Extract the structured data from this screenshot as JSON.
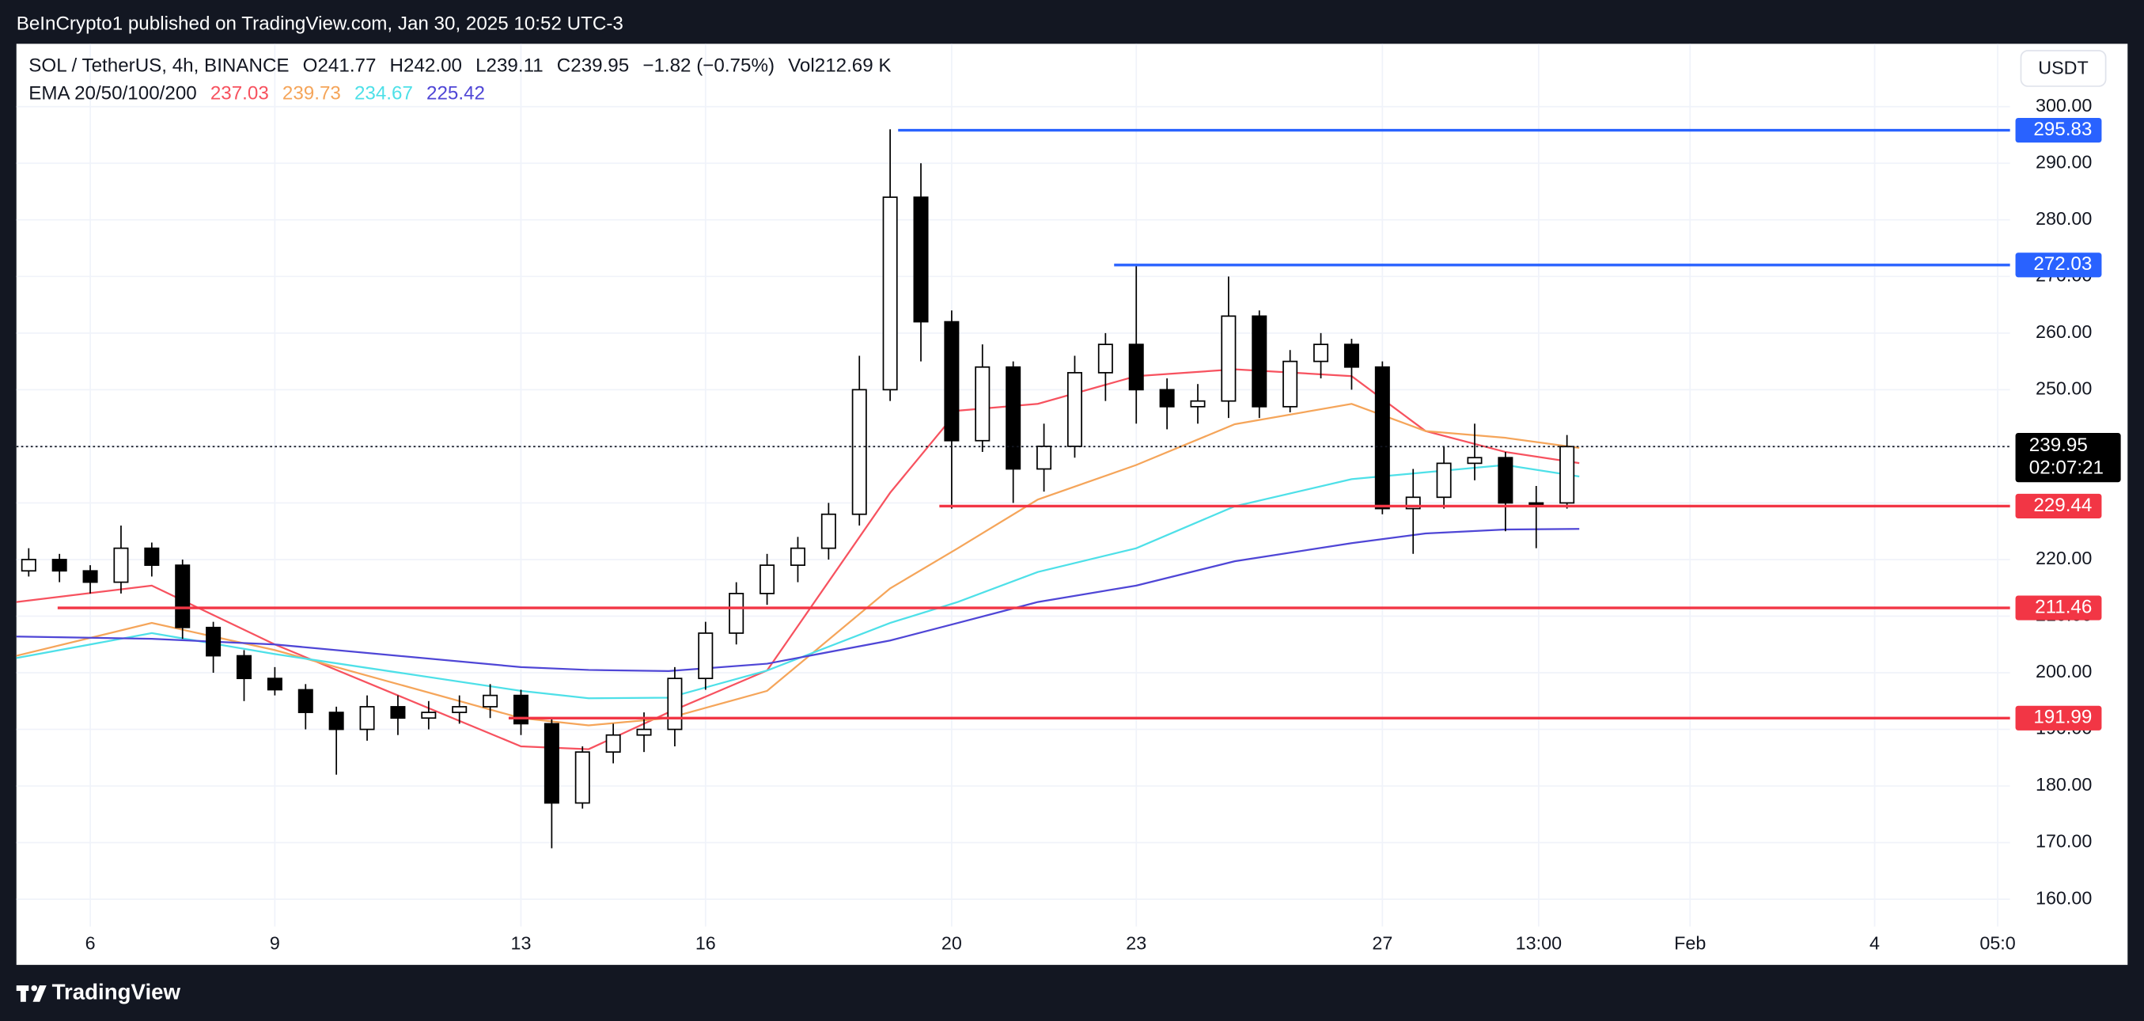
{
  "header": {
    "published": "BeInCrypto1 published on TradingView.com, Jan 30, 2025 10:52 UTC-3",
    "brand": "TradingView"
  },
  "legend": {
    "symbol": "SOL / TetherUS, 4h, BINANCE",
    "open": "O241.77",
    "high": "H242.00",
    "low": "L239.11",
    "close": "C239.95",
    "change": "−1.82 (−0.75%)",
    "volume": "Vol212.69 K",
    "ema_label": "EMA 20/50/100/200",
    "ema_values": [
      "237.03",
      "239.73",
      "234.67",
      "225.42"
    ]
  },
  "currency": "USDT",
  "chart_data": {
    "type": "candlestick",
    "x": [
      5.0,
      5.5,
      6.0,
      6.5,
      7.0,
      7.5,
      8.0,
      8.5,
      9.0,
      9.5,
      10.0,
      10.5,
      11.0,
      11.5,
      12.0,
      12.5,
      13.0,
      13.5,
      14.0,
      14.5,
      15.0,
      15.5,
      16.0,
      16.5,
      17.0,
      17.5,
      18.0,
      18.5,
      19.0,
      19.5,
      20.0,
      20.5,
      21.0,
      21.5,
      22.0,
      22.5,
      23.0,
      23.5,
      24.0,
      24.5,
      25.0,
      25.5,
      26.0,
      26.5,
      27.0,
      27.5,
      28.0,
      28.5,
      29.0,
      29.5,
      30.0
    ],
    "open": [
      218,
      220,
      218,
      216,
      222,
      219,
      208,
      203,
      199,
      197,
      193,
      190,
      194,
      192,
      193,
      194,
      196,
      191,
      177,
      186,
      189,
      190,
      199,
      207,
      214,
      219,
      222,
      228,
      250,
      284,
      262,
      241,
      254,
      236,
      240,
      253,
      258,
      250,
      247,
      248,
      263,
      247,
      255,
      258,
      254,
      229,
      231,
      237,
      238,
      230,
      230
    ],
    "high": [
      222,
      221,
      219,
      226,
      223,
      220,
      209,
      204,
      201,
      198,
      194,
      196,
      196,
      195,
      196,
      198,
      197,
      192,
      187,
      191,
      193,
      201,
      209,
      216,
      221,
      224,
      230,
      256,
      296,
      290,
      264,
      258,
      255,
      244,
      256,
      260,
      272,
      252,
      251,
      270,
      264,
      257,
      260,
      259,
      255,
      236,
      240,
      244,
      239,
      233,
      242
    ],
    "low": [
      217,
      216,
      214,
      214,
      217,
      206,
      200,
      195,
      196,
      190,
      182,
      188,
      189,
      190,
      191,
      192,
      189,
      169,
      176,
      184,
      186,
      187,
      197,
      205,
      212,
      216,
      220,
      226,
      248,
      255,
      229,
      239,
      230,
      232,
      238,
      248,
      244,
      243,
      244,
      245,
      245,
      246,
      252,
      250,
      228,
      221,
      229,
      234,
      225,
      222,
      229
    ],
    "close": [
      220,
      218,
      216,
      222,
      219,
      208,
      203,
      199,
      197,
      193,
      190,
      194,
      192,
      193,
      194,
      196,
      191,
      177,
      186,
      189,
      190,
      199,
      207,
      214,
      219,
      222,
      228,
      250,
      284,
      262,
      241,
      254,
      236,
      240,
      253,
      258,
      250,
      247,
      248,
      263,
      247,
      255,
      258,
      254,
      229,
      231,
      237,
      238,
      230,
      230,
      239.95
    ],
    "up_color": "#ffffff",
    "down_color": "#000000",
    "series": [
      {
        "color": "#f7525f",
        "x": [
          4.8,
          7,
          9,
          13,
          14.1,
          15.4,
          17,
          19,
          20.1,
          21.4,
          23,
          24.6,
          26.5,
          27.7,
          29,
          30.2
        ],
        "values": [
          212.5,
          215.4,
          205,
          187,
          186.5,
          193,
          200.4,
          231.8,
          246.3,
          247.5,
          252.4,
          253.6,
          252.4,
          242.7,
          239,
          237.03
        ]
      },
      {
        "color": "#f5a55a",
        "x": [
          4.8,
          7,
          9,
          13,
          14.1,
          15.4,
          17,
          19,
          20.1,
          21.4,
          23,
          24.6,
          26.5,
          27.7,
          29,
          30.2
        ],
        "values": [
          203,
          208.8,
          204,
          192,
          190.7,
          192,
          196.8,
          214.9,
          222,
          230.6,
          236.7,
          243.9,
          247.5,
          242.7,
          241.5,
          239.73
        ]
      },
      {
        "color": "#4ee0e8",
        "x": [
          4.8,
          7,
          9,
          13,
          14.1,
          15.4,
          17,
          19,
          20.1,
          21.4,
          23,
          24.6,
          26.5,
          27.7,
          29,
          30.2
        ],
        "values": [
          202.6,
          207,
          203.3,
          196.8,
          195.5,
          195.6,
          200.4,
          208.8,
          212.5,
          217.8,
          222,
          229.4,
          234.2,
          235.4,
          236.7,
          234.67
        ]
      },
      {
        "color": "#4f46d6",
        "x": [
          4.8,
          7,
          9,
          13,
          14.1,
          15.4,
          17,
          19,
          20.1,
          21.4,
          23,
          24.6,
          26.5,
          27.7,
          29,
          30.2
        ],
        "values": [
          206.4,
          206,
          205,
          201,
          200.5,
          200.3,
          201.6,
          205.7,
          208.8,
          212.5,
          215.4,
          219.7,
          222.9,
          224.6,
          225.3,
          225.42
        ]
      }
    ],
    "levels": [
      {
        "price": 295.83,
        "from": 19.13,
        "color": "#2962ff"
      },
      {
        "price": 272.03,
        "from": 22.64,
        "color": "#2962ff"
      },
      {
        "price": 229.44,
        "from": 19.8,
        "color": "#f23645"
      },
      {
        "price": 211.46,
        "from": 5.47,
        "color": "#f23645"
      },
      {
        "price": 191.99,
        "from": 12.8,
        "color": "#f23645"
      }
    ],
    "last": {
      "price": 239.95,
      "countdown": "02:07:21"
    },
    "xlim": [
      4.8,
      37.2
    ],
    "ylim": [
      148.4,
      311.1
    ],
    "xticks": [
      6,
      9,
      13,
      16,
      20,
      23,
      27,
      {
        "value": 29.54,
        "label": "13:00"
      },
      {
        "value": 32,
        "label": "Feb"
      },
      {
        "value": 35,
        "label": "4"
      },
      {
        "value": 37,
        "label": "05:0"
      }
    ],
    "yticks": [
      {
        "value": 160,
        "label": "160.00"
      },
      {
        "value": 170,
        "label": "170.00"
      },
      {
        "value": 180,
        "label": "180.00"
      },
      {
        "value": 190,
        "label": "190.00"
      },
      {
        "value": 200,
        "label": "200.00"
      },
      {
        "value": 210,
        "label": "210.00"
      },
      {
        "value": 220,
        "label": "220.00"
      },
      {
        "value": 230,
        "label": "230.00"
      },
      {
        "value": 240,
        "label": "240.00"
      },
      {
        "value": 250,
        "label": "250.00"
      },
      {
        "value": 260,
        "label": "260.00"
      },
      {
        "value": 270,
        "label": "270.00"
      },
      {
        "value": 280,
        "label": "280.00"
      },
      {
        "value": 290,
        "label": "290.00"
      },
      {
        "value": 300,
        "label": "300.00"
      }
    ],
    "grid": true
  }
}
